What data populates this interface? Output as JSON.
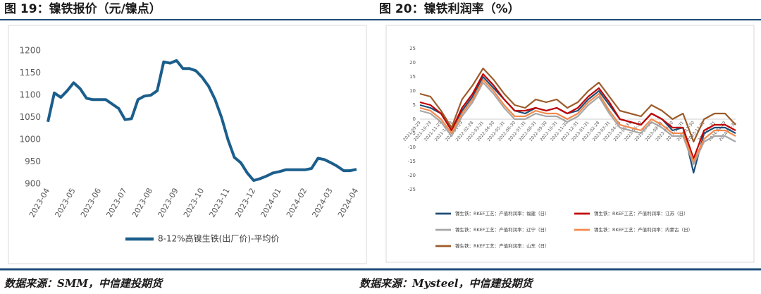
{
  "chart_data": [
    {
      "type": "line",
      "title": "图 19：镍铁报价（元/镍点）",
      "source": "数据来源：SMM，中信建投期货",
      "categories": [
        "2023-04",
        null,
        null,
        null,
        "2023-05",
        null,
        null,
        null,
        "2023-06",
        null,
        null,
        null,
        "2023-07",
        null,
        null,
        null,
        "2023-08",
        null,
        null,
        null,
        "2023-09",
        null,
        null,
        null,
        "2023-10",
        null,
        null,
        null,
        "2023-11",
        null,
        null,
        null,
        "2023-12",
        null,
        null,
        null,
        "2024-01",
        null,
        null,
        null,
        "2024-02",
        null,
        null,
        null,
        "2024-03",
        null,
        null,
        null,
        "2024-04"
      ],
      "series": [
        {
          "name": "8-12%高镍生铁(出厂价)-平均价",
          "color": "#1b5e8c",
          "values": [
            1040,
            1105,
            1095,
            1110,
            1128,
            1115,
            1093,
            1090,
            1090,
            1090,
            1080,
            1070,
            1045,
            1047,
            1090,
            1098,
            1100,
            1110,
            1175,
            1172,
            1178,
            1160,
            1160,
            1155,
            1140,
            1120,
            1090,
            1050,
            1000,
            960,
            948,
            925,
            908,
            912,
            918,
            925,
            928,
            932,
            932,
            932,
            932,
            935,
            958,
            955,
            948,
            940,
            930,
            930,
            933
          ]
        }
      ],
      "ylim": [
        900,
        1200
      ],
      "yticks": [
        900,
        950,
        1000,
        1050,
        1100,
        1150,
        1200
      ],
      "legend": "bottom"
    },
    {
      "type": "line",
      "title": "图 20：镍铁利润率（%）",
      "source": "数据来源：Mysteel，中信建投期货",
      "categories": [
        "2021-09-29",
        "2021-10-29",
        "2021-11-29",
        "2021-12-29",
        "2022-01-29",
        "2022-02-28",
        "2022-03-31",
        "2022-04-30",
        "2022-05-31",
        "2022-06-30",
        "2022-07-31",
        "2022-08-31",
        "2022-09-30",
        "2022-10-31",
        "2022-11-30",
        "2022-12-31",
        "2023-01-31",
        "2023-02-28",
        "2023-03-31",
        "2023-04-30",
        "2023-05-31",
        "2023-06-30",
        "2023-07-31",
        "2023-08-31",
        "2023-09-30",
        "2023-10-31",
        "2023-11-30",
        "2023-12-31",
        "2024-01-31",
        "2024-02-29",
        "2024-03-31"
      ],
      "series": [
        {
          "name": "镍生铁：RKEF工艺：产值利润率：福建（日）",
          "color": "#1f4e79",
          "values": [
            5,
            4,
            2,
            -4,
            3,
            8,
            15,
            11,
            7,
            3,
            2,
            4,
            3,
            4,
            2,
            3,
            7,
            10,
            5,
            0,
            -1,
            -2,
            2,
            0,
            -4,
            -3,
            -19,
            -5,
            -3,
            -3,
            -5
          ]
        },
        {
          "name": "镍生铁：RKEF工艺：产值利润率：江苏（日）",
          "color": "#c00000",
          "values": [
            6,
            5,
            2,
            -4,
            4,
            9,
            16,
            12,
            7,
            3,
            3,
            4,
            3,
            4,
            2,
            4,
            8,
            11,
            6,
            0,
            -1,
            -2,
            2,
            0,
            -3,
            -3,
            -14,
            -4,
            -2,
            -2,
            -4
          ]
        },
        {
          "name": "镍生铁：RKEF工艺：产值利润率：辽宁（日）",
          "color": "#a6a6a6",
          "values": [
            3,
            2,
            -1,
            -6,
            1,
            6,
            13,
            9,
            4,
            0,
            0,
            2,
            1,
            1,
            -1,
            1,
            5,
            8,
            2,
            -3,
            -4,
            -5,
            -1,
            -3,
            -6,
            -6,
            -16,
            -8,
            -6,
            -6,
            -8
          ]
        },
        {
          "name": "镍生铁：RKEF工艺：产值利润率：内蒙古（日）",
          "color": "#f4894b",
          "values": [
            4,
            3,
            0,
            -5,
            2,
            7,
            14,
            10,
            5,
            1,
            1,
            3,
            2,
            2,
            0,
            2,
            6,
            9,
            3,
            -2,
            -3,
            -4,
            0,
            -2,
            -5,
            -5,
            -15,
            -7,
            -4,
            -4,
            -6
          ]
        },
        {
          "name": "镍生铁：RKEF工艺：产值利润率：山东（日）",
          "color": "#9c5b2a",
          "values": [
            9,
            8,
            3,
            -3,
            7,
            12,
            18,
            14,
            9,
            5,
            4,
            7,
            6,
            7,
            4,
            6,
            10,
            13,
            8,
            3,
            2,
            1,
            5,
            3,
            0,
            2,
            -8,
            0,
            2,
            2,
            -2
          ]
        }
      ],
      "ylim": [
        -25,
        25
      ],
      "yticks": [
        -25,
        -20,
        -15,
        -10,
        -5,
        0,
        5,
        10,
        15,
        20,
        25
      ],
      "legend": "bottom"
    }
  ]
}
